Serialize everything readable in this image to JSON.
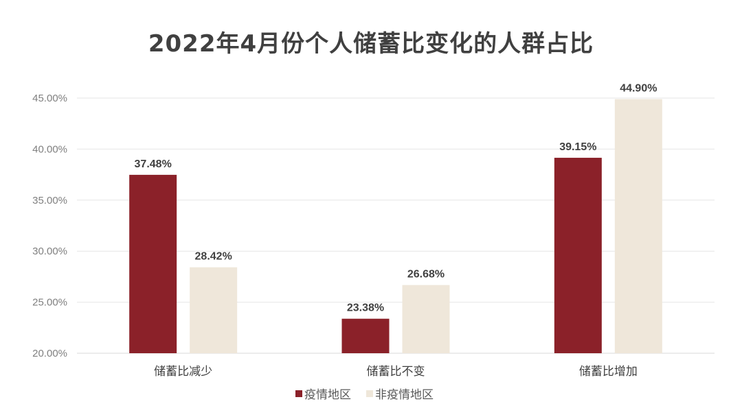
{
  "chart_data": {
    "type": "bar",
    "title": "2022年4月份个人储蓄比变化的人群占比",
    "categories": [
      "储蓄比减少",
      "储蓄比不变",
      "储蓄比增加"
    ],
    "series": [
      {
        "name": "疫情地区",
        "values": [
          37.48,
          23.38,
          39.15
        ],
        "color": "#8B2129"
      },
      {
        "name": "非疫情地区",
        "values": [
          28.42,
          26.68,
          44.9
        ],
        "color": "#EFE7DA"
      }
    ],
    "ylim": [
      20,
      45
    ],
    "yticks": [
      "20.00%",
      "25.00%",
      "30.00%",
      "35.00%",
      "40.00%",
      "45.00%"
    ],
    "grid": true,
    "legend": "bottom",
    "value_format": "percent-2dp"
  }
}
